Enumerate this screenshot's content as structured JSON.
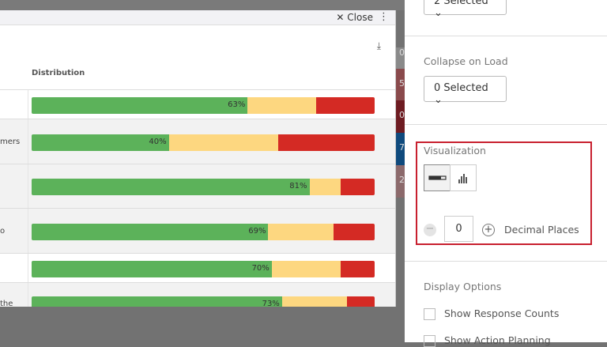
{
  "modal": {
    "close_label": "Close",
    "column_header": "Distribution",
    "rows": [
      {
        "label": "",
        "green": 63,
        "yellow": 20,
        "red": 17,
        "pct_label": "63%"
      },
      {
        "label": "mers",
        "green": 40,
        "yellow": 32,
        "red": 28,
        "pct_label": "40%"
      },
      {
        "label": "",
        "green": 81,
        "yellow": 9,
        "red": 10,
        "pct_label": "81%"
      },
      {
        "label": "o",
        "green": 69,
        "yellow": 19,
        "red": 12,
        "pct_label": "69%"
      },
      {
        "label": "",
        "green": 70,
        "yellow": 20,
        "red": 10,
        "pct_label": "70%"
      },
      {
        "label": "the",
        "green": 73,
        "yellow": 19,
        "red": 8,
        "pct_label": "73%"
      }
    ]
  },
  "colors": {
    "positive": "#5cb25a",
    "neutral": "#fdd780",
    "negative": "#d42a24",
    "highlight": "#c8202f"
  },
  "background": {
    "strip_values": [
      "0",
      "5",
      "0",
      "7",
      "2"
    ]
  },
  "panel": {
    "top_dropdown": "2 Selected",
    "collapse_label": "Collapse on Load",
    "collapse_value": "0 Selected",
    "visualization_label": "Visualization",
    "visualization_selected": "bar",
    "decimal_value": "0",
    "decimal_label": "Decimal Places",
    "display_options_label": "Display Options",
    "options": [
      {
        "label": "Show Response Counts",
        "checked": false
      },
      {
        "label": "Show Action Planning",
        "checked": false
      }
    ]
  }
}
